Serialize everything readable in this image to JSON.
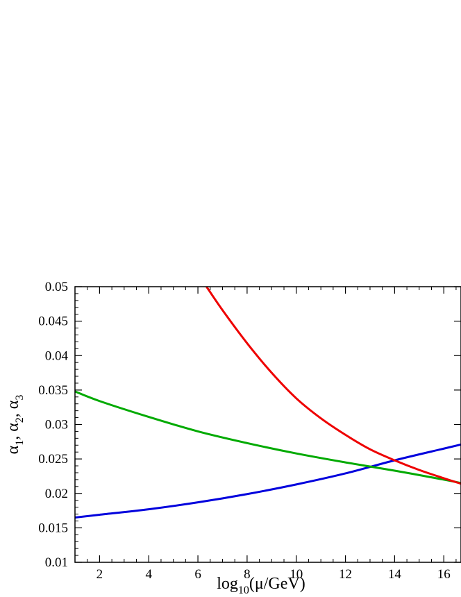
{
  "chart_data": {
    "type": "line",
    "title": "",
    "xlabel": {
      "base": "log",
      "sub": "10",
      "rest": "(μ/GeV)"
    },
    "ylabel": {
      "parts": [
        {
          "sym": "α",
          "sub": "1",
          "sep": ", "
        },
        {
          "sym": "α",
          "sub": "2",
          "sep": ", "
        },
        {
          "sym": "α",
          "sub": "3",
          "sep": ""
        }
      ]
    },
    "xlim": [
      1,
      16.7
    ],
    "ylim": [
      0.01,
      0.05
    ],
    "xticks": [
      2,
      4,
      6,
      8,
      10,
      12,
      14,
      16
    ],
    "xtick_labels": [
      "2",
      "4",
      "6",
      "8",
      "10",
      "12",
      "14",
      "16"
    ],
    "yticks": [
      0.01,
      0.015,
      0.02,
      0.025,
      0.03,
      0.035,
      0.04,
      0.045,
      0.05
    ],
    "ytick_labels": [
      "0.01",
      "0.015",
      "0.02",
      "0.025",
      "0.03",
      "0.035",
      "0.04",
      "0.045",
      "0.05"
    ],
    "grid": false,
    "series": [
      {
        "color": "#0000dd",
        "x": [
          1,
          2,
          4,
          6,
          8,
          10,
          12,
          14,
          16,
          16.7
        ],
        "y": [
          0.0165,
          0.0169,
          0.0177,
          0.0187,
          0.0199,
          0.0213,
          0.0229,
          0.0248,
          0.0265,
          0.0271
        ]
      },
      {
        "color": "#00aa00",
        "x": [
          1,
          2,
          4,
          6,
          8,
          10,
          12,
          14,
          16,
          16.7
        ],
        "y": [
          0.0348,
          0.0334,
          0.0311,
          0.029,
          0.0273,
          0.0258,
          0.0245,
          0.0233,
          0.022,
          0.0215
        ]
      },
      {
        "color": "#ee0000",
        "x": [
          6.35,
          7,
          8,
          9,
          10,
          11,
          12,
          13,
          14,
          15,
          16,
          16.7
        ],
        "y": [
          0.05,
          0.0466,
          0.0418,
          0.0375,
          0.0338,
          0.0309,
          0.0285,
          0.0264,
          0.0248,
          0.0234,
          0.0222,
          0.0214
        ]
      }
    ]
  }
}
